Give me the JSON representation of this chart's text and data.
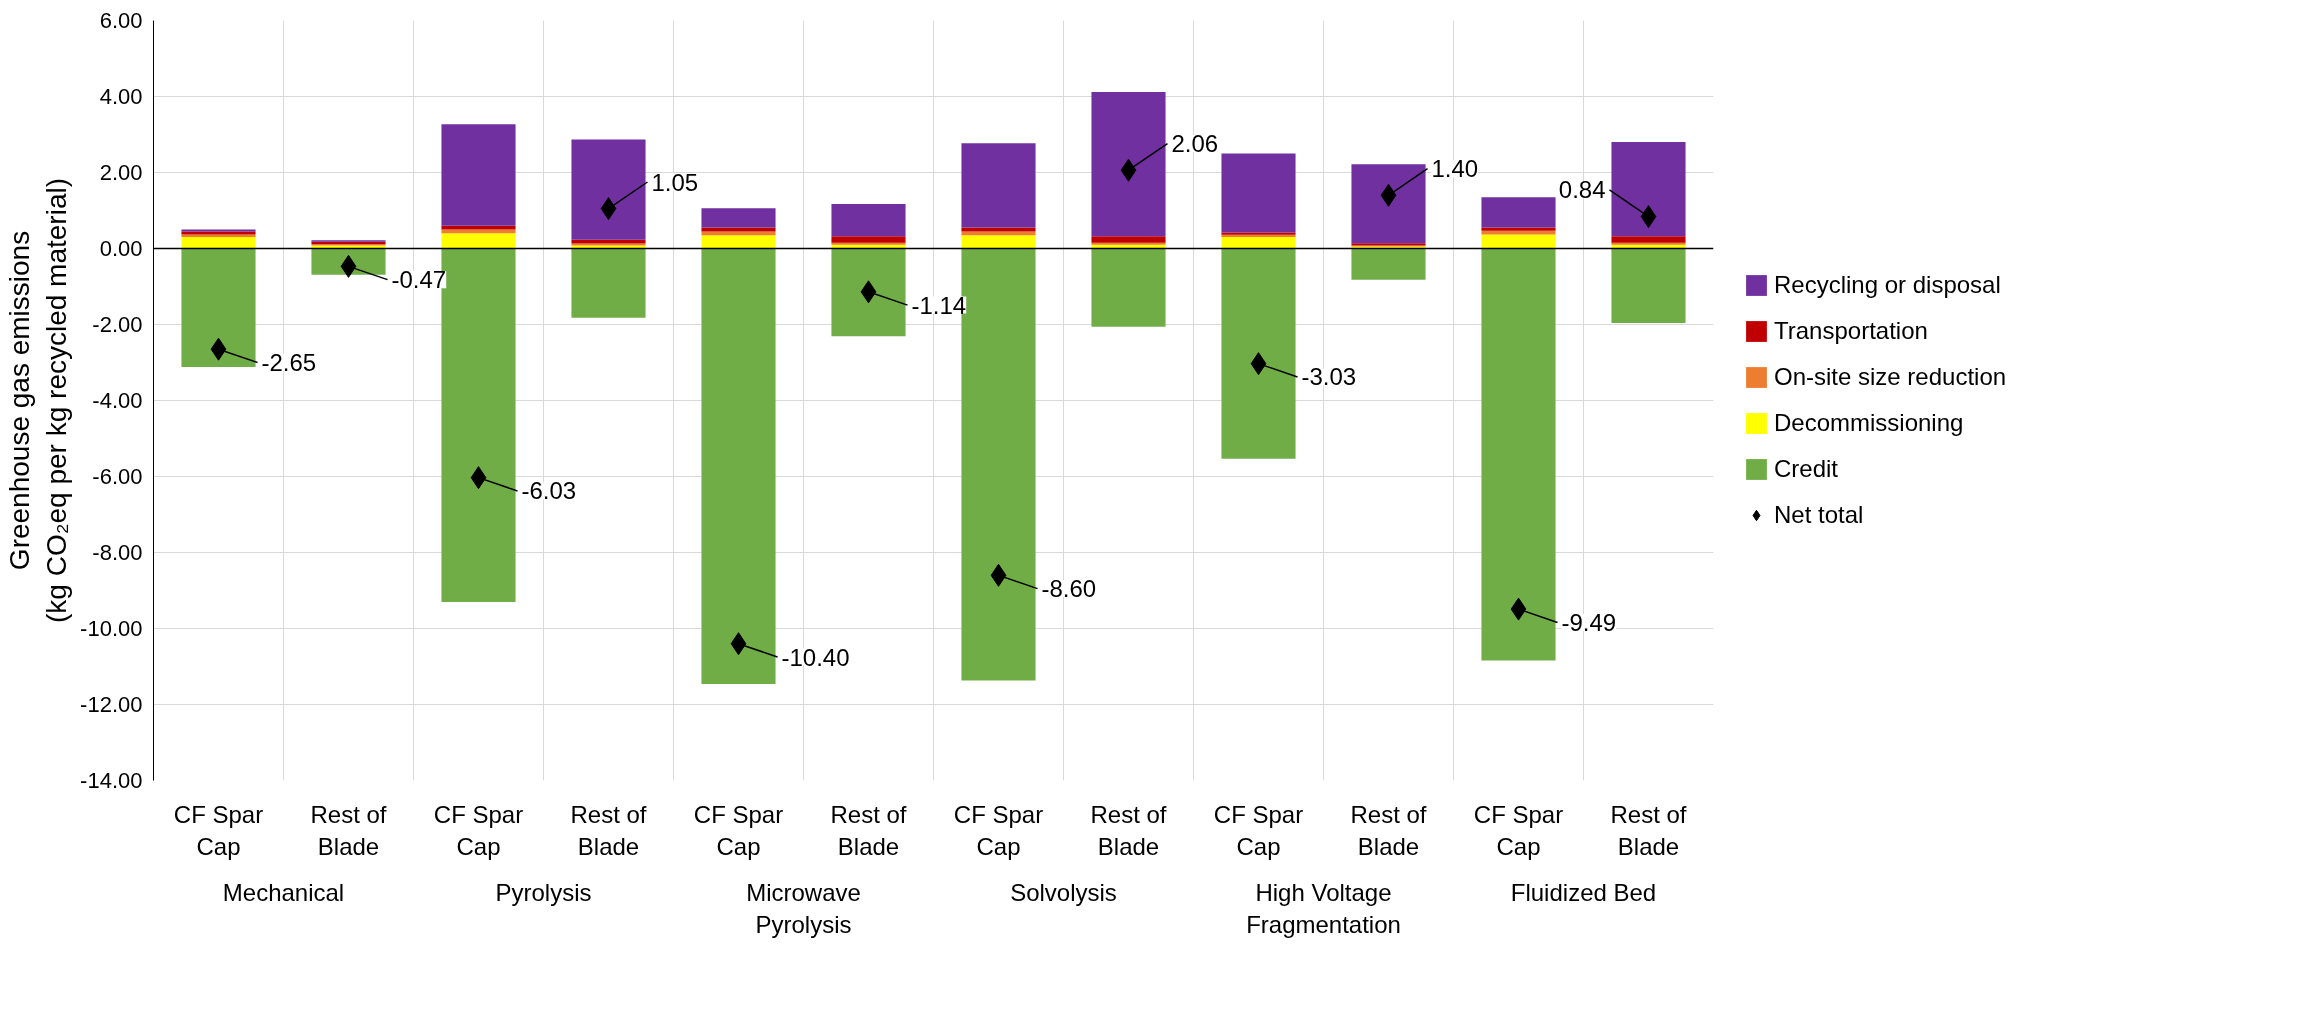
{
  "chart_data": {
    "type": "bar",
    "stacked": true,
    "ylabel": "Greenhouse gas emissions\n(kg CO₂eq per kg recycled material)",
    "categories": [
      "CF Spar Cap",
      "Rest of Blade",
      "CF Spar Cap",
      "Rest of Blade",
      "CF Spar Cap",
      "Rest of Blade",
      "CF Spar Cap",
      "Rest of Blade",
      "CF Spar Cap",
      "Rest of Blade",
      "CF Spar Cap",
      "Rest of Blade"
    ],
    "annotations": [
      "Mechanical",
      "Pyrolysis",
      "Microwave Pyrolysis",
      "Solvolysis",
      "High Voltage Fragmentation",
      "Fluidized Bed"
    ],
    "series": [
      {
        "name": "Credit",
        "color": "#70ad47",
        "values": [
          -3.12,
          -0.69,
          -9.3,
          -1.82,
          -11.46,
          -2.31,
          -11.37,
          -2.06,
          -5.53,
          -0.82,
          -10.84,
          -1.96
        ]
      },
      {
        "name": "Decommissioning",
        "color": "#ffff00",
        "values": [
          0.3,
          0.08,
          0.4,
          0.08,
          0.35,
          0.1,
          0.35,
          0.1,
          0.3,
          0.05,
          0.37,
          0.1
        ]
      },
      {
        "name": "On-site size reduction",
        "color": "#ed7d31",
        "values": [
          0.07,
          0.03,
          0.1,
          0.05,
          0.1,
          0.05,
          0.1,
          0.05,
          0.06,
          0.03,
          0.1,
          0.05
        ]
      },
      {
        "name": "Transportation",
        "color": "#c00000",
        "values": [
          0.08,
          0.07,
          0.1,
          0.1,
          0.1,
          0.17,
          0.1,
          0.17,
          0.06,
          0.06,
          0.08,
          0.17
        ]
      },
      {
        "name": "Recycling or disposal",
        "color": "#7030a0",
        "values": [
          0.05,
          0.04,
          2.67,
          2.64,
          0.51,
          0.85,
          2.22,
          3.8,
          2.08,
          2.08,
          0.8,
          2.48
        ]
      },
      {
        "name": "Net total",
        "type": "scatter",
        "color": "#000000",
        "marker": "diamond",
        "values": [
          -2.65,
          -0.47,
          -6.03,
          1.05,
          -10.4,
          -1.14,
          -8.6,
          2.06,
          -3.03,
          1.4,
          -9.49,
          0.84
        ],
        "value_labels": [
          "-2.65",
          "-0.47",
          "-6.03",
          "1.05",
          "-10.40",
          "-1.14",
          "-8.60",
          "2.06",
          "-3.03",
          "1.40",
          "-9.49",
          "0.84"
        ]
      }
    ],
    "ylim": [
      -14,
      6
    ],
    "yticks": [
      {
        "value": -14,
        "label": "-14.00"
      },
      {
        "value": -12,
        "label": "-12.00"
      },
      {
        "value": -10,
        "label": "-10.00"
      },
      {
        "value": -8,
        "label": "-8.00"
      },
      {
        "value": -6,
        "label": "-6.00"
      },
      {
        "value": -4,
        "label": "-4.00"
      },
      {
        "value": -2,
        "label": "-2.00"
      },
      {
        "value": 0,
        "label": "0.00"
      },
      {
        "value": 2,
        "label": "2.00"
      },
      {
        "value": 4,
        "label": "4.00"
      },
      {
        "value": 6,
        "label": "6.00"
      }
    ],
    "grid": true,
    "legend": "right"
  }
}
